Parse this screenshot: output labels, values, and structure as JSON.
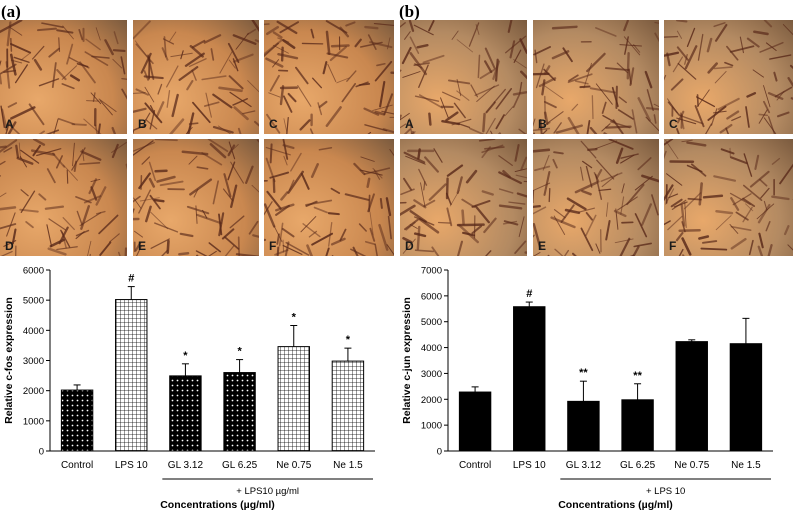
{
  "figure": {
    "panel_a_letter": "(a)",
    "panel_b_letter": "(b)",
    "micrographs": [
      "A",
      "B",
      "C",
      "D",
      "E",
      "F"
    ]
  },
  "colors": {
    "micrograph_a_base": "#c9874f",
    "micrograph_b_base": "#b38a62",
    "cell_stain": "#5a2a1a",
    "bar_fill": "#000000"
  },
  "chart_data": [
    {
      "type": "bar",
      "categories": [
        "Control",
        "LPS 10",
        "GL 3.12",
        "GL 6.25",
        "Ne 0.75",
        "Ne 1.5"
      ],
      "values": [
        2020,
        5020,
        2490,
        2600,
        3460,
        2980
      ],
      "errors": [
        170,
        430,
        400,
        430,
        700,
        430
      ],
      "annotations": [
        "",
        "#",
        "*",
        "*",
        "*",
        "*"
      ],
      "patterns": [
        "dots",
        "grid",
        "dots",
        "dots",
        "grid",
        "grid"
      ],
      "ylabel": "Relative c-fos expression",
      "xlabel": "Concentrations (µg/ml)",
      "group_label": "+ LPS10 µg/ml",
      "ylim": [
        0,
        6000
      ],
      "yticks": [
        0,
        1000,
        2000,
        3000,
        4000,
        5000,
        6000
      ],
      "grid": false
    },
    {
      "type": "bar",
      "categories": [
        "Control",
        "LPS 10",
        "GL 3.12",
        "GL 6.25",
        "Ne 0.75",
        "Ne 1.5"
      ],
      "values": [
        2280,
        5580,
        1920,
        1980,
        4230,
        4150
      ],
      "errors": [
        200,
        180,
        780,
        620,
        70,
        980
      ],
      "annotations": [
        "",
        "#",
        "**",
        "**",
        "",
        ""
      ],
      "patterns": [
        "solid",
        "solid",
        "solid",
        "solid",
        "solid",
        "solid"
      ],
      "ylabel": "Relative c-jun expression",
      "xlabel": "Concentrations (µg/ml)",
      "group_label": "+ LPS 10",
      "ylim": [
        0,
        7000
      ],
      "yticks": [
        0,
        1000,
        2000,
        3000,
        4000,
        5000,
        6000,
        7000
      ],
      "grid": false
    }
  ]
}
